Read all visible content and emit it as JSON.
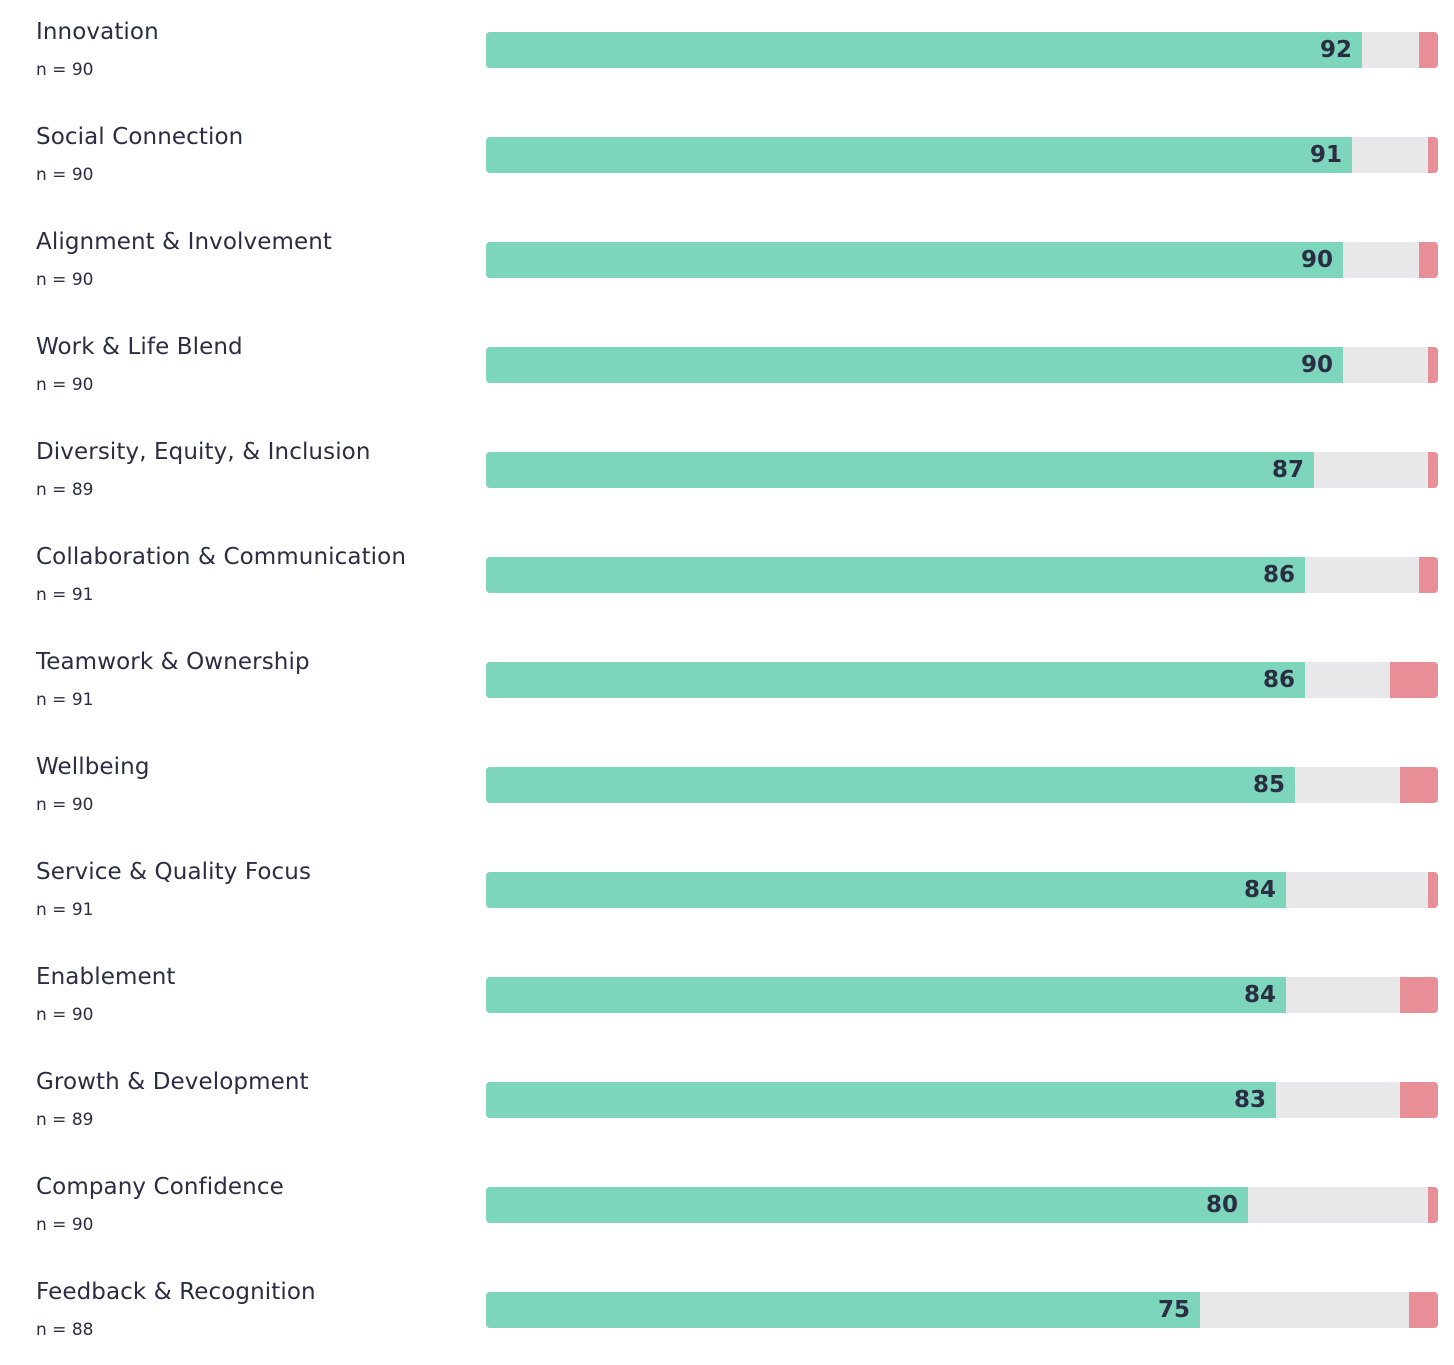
{
  "colors": {
    "favorable": "#7dd5bb",
    "neutral": "#e8e8ea",
    "unfavorable": "#e88e97",
    "text": "#2b2d42"
  },
  "chart_data": {
    "type": "bar",
    "orientation": "horizontal",
    "stacked": true,
    "scale": [
      0,
      100
    ],
    "categories": [
      "Innovation",
      "Social Connection",
      "Alignment & Involvement",
      "Work & Life Blend",
      "Diversity, Equity, & Inclusion",
      "Collaboration & Communication",
      "Teamwork & Ownership",
      "Wellbeing",
      "Service & Quality Focus",
      "Enablement",
      "Growth & Development",
      "Company Confidence",
      "Feedback & Recognition"
    ],
    "counts": [
      "n = 90",
      "n = 90",
      "n = 90",
      "n = 90",
      "n = 89",
      "n = 91",
      "n = 91",
      "n = 90",
      "n = 91",
      "n = 90",
      "n = 89",
      "n = 90",
      "n = 88"
    ],
    "series": [
      {
        "values": [
          92,
          91,
          90,
          90,
          87,
          86,
          86,
          85,
          84,
          84,
          83,
          80,
          75
        ]
      },
      {
        "values": [
          6,
          8,
          8,
          9,
          12,
          12,
          9,
          11,
          15,
          12,
          13,
          19,
          22
        ]
      },
      {
        "values": [
          2,
          1,
          2,
          1,
          1,
          2,
          5,
          4,
          1,
          4,
          4,
          1,
          3
        ]
      }
    ],
    "grid": false,
    "legend": "none"
  }
}
